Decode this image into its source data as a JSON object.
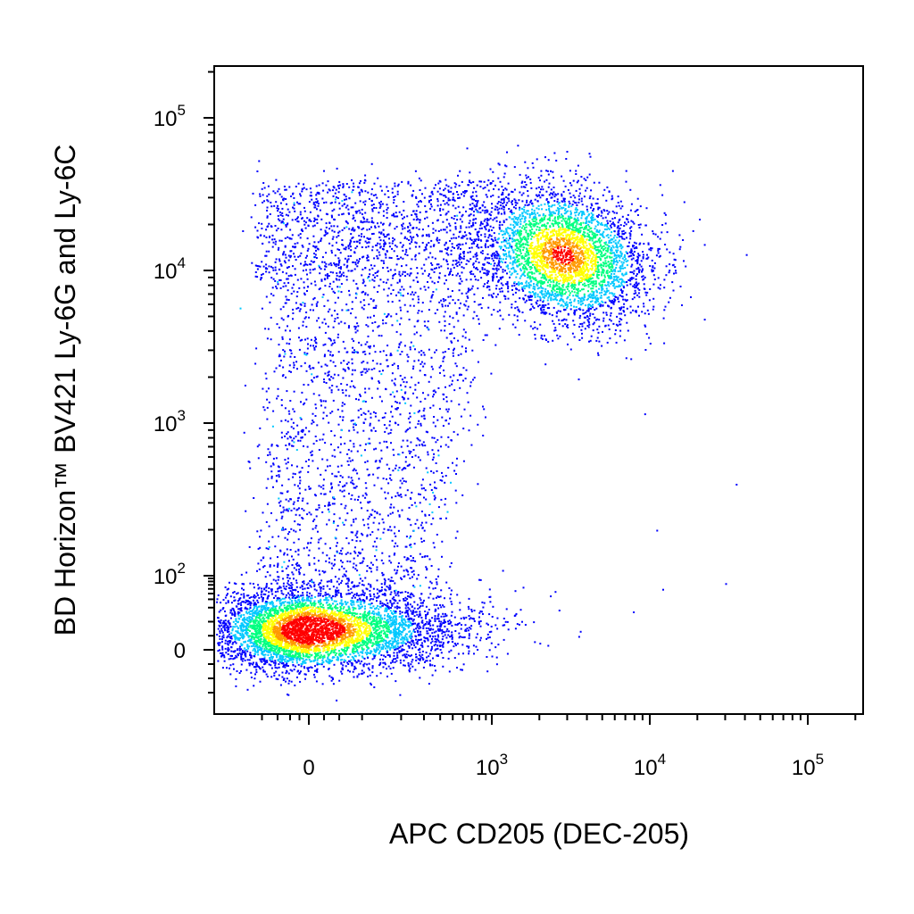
{
  "chart_data": {
    "type": "scatter",
    "subtype": "flow-cytometry-density-dot-plot",
    "xlabel": "APC CD205 (DEC-205)",
    "ylabel": "BD Horizon™ BV421 Ly-6G and Ly-6C",
    "x_scale": "biexponential",
    "y_scale": "biexponential",
    "x_ticks": [
      {
        "value": 0,
        "base": "0",
        "exp": ""
      },
      {
        "value": 1000,
        "base": "10",
        "exp": "3"
      },
      {
        "value": 10000,
        "base": "10",
        "exp": "4"
      },
      {
        "value": 100000,
        "base": "10",
        "exp": "5"
      }
    ],
    "y_ticks": [
      {
        "value": 0,
        "base": "0",
        "exp": ""
      },
      {
        "value": 100,
        "base": "10",
        "exp": "2"
      },
      {
        "value": 1000,
        "base": "10",
        "exp": "3"
      },
      {
        "value": 10000,
        "base": "10",
        "exp": "4"
      },
      {
        "value": 100000,
        "base": "10",
        "exp": "5"
      }
    ],
    "xlim": [
      -150,
      262144
    ],
    "ylim": [
      -30,
      262144
    ],
    "grid": false,
    "legend": "none",
    "density_colors": [
      "#0000ff",
      "#00c8ff",
      "#00ff80",
      "#ffff00",
      "#ff9900",
      "#ff0000"
    ],
    "populations": [
      {
        "x_center": 20,
        "y_center": 45,
        "count": 5200,
        "density": "high"
      },
      {
        "x_center": 3000,
        "y_center": 13000,
        "count": 3600,
        "density": "medium"
      },
      {
        "x_center": 200,
        "y_center": 1200,
        "count": 2400,
        "density": "low"
      }
    ],
    "outliers": [
      {
        "x": 35000,
        "y": 400
      },
      {
        "x": 11000,
        "y": 200
      },
      {
        "x": 30000,
        "y": 75
      },
      {
        "x": 12000,
        "y": 60
      },
      {
        "x": 2500,
        "y": 55
      },
      {
        "x": 2000,
        "y": 5
      }
    ]
  }
}
